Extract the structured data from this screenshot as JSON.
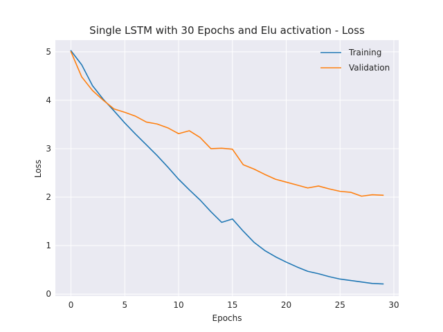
{
  "chart_data": {
    "type": "line",
    "title": "Single LSTM with 30 Epochs and Elu activation - Loss",
    "xlabel": "Epochs",
    "ylabel": "Loss",
    "xlim": [
      -1.45,
      30.45
    ],
    "ylim": [
      -0.04,
      5.24
    ],
    "xticks": [
      0,
      5,
      10,
      15,
      20,
      25,
      30
    ],
    "yticks": [
      0,
      1,
      2,
      3,
      4,
      5
    ],
    "grid": true,
    "legend_position": "top-right",
    "x": [
      0,
      1,
      2,
      3,
      4,
      5,
      6,
      7,
      8,
      9,
      10,
      11,
      12,
      13,
      14,
      15,
      16,
      17,
      18,
      19,
      20,
      21,
      22,
      23,
      24,
      25,
      26,
      27,
      28,
      29
    ],
    "series": [
      {
        "name": "Training",
        "color": "#1f77b4",
        "values": [
          5.02,
          4.73,
          4.3,
          4.02,
          3.78,
          3.53,
          3.3,
          3.08,
          2.86,
          2.62,
          2.37,
          2.15,
          1.94,
          1.7,
          1.48,
          1.55,
          1.3,
          1.07,
          0.9,
          0.77,
          0.66,
          0.56,
          0.47,
          0.42,
          0.36,
          0.31,
          0.28,
          0.25,
          0.22,
          0.21
        ]
      },
      {
        "name": "Validation",
        "color": "#ff7f0e",
        "values": [
          5.0,
          4.48,
          4.2,
          4.0,
          3.82,
          3.75,
          3.67,
          3.55,
          3.51,
          3.43,
          3.31,
          3.37,
          3.23,
          3.0,
          3.01,
          2.99,
          2.67,
          2.58,
          2.47,
          2.37,
          2.31,
          2.25,
          2.19,
          2.23,
          2.17,
          2.12,
          2.1,
          2.02,
          2.05,
          2.04
        ]
      }
    ]
  }
}
